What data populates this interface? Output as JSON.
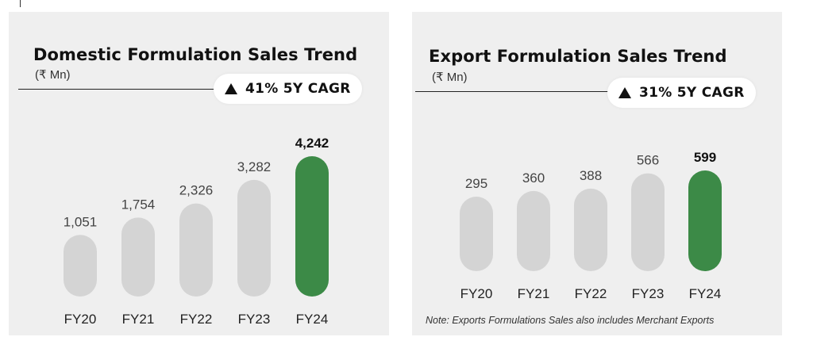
{
  "colors": {
    "bar": "#d4d4d4",
    "highlight": "#3c8a47",
    "panel": "#efefef"
  },
  "domestic": {
    "title": "Domestic Formulation Sales Trend",
    "unit": "(₹ Mn)",
    "cagr": "41% 5Y CAGR",
    "cagr_icon": "triangle-up-icon"
  },
  "export": {
    "title": "Export Formulation Sales Trend",
    "unit": "(₹ Mn)",
    "cagr": "31% 5Y CAGR",
    "cagr_icon": "triangle-up-icon",
    "note": "Note: Exports Formulations Sales also includes Merchant Exports"
  },
  "chart_data": [
    {
      "type": "bar",
      "title": "Domestic Formulation Sales Trend",
      "ylabel": "(₹ Mn)",
      "categories": [
        "FY20",
        "FY21",
        "FY22",
        "FY23",
        "FY24"
      ],
      "values": [
        1051,
        1754,
        2326,
        3282,
        4242
      ],
      "value_labels": [
        "1,051",
        "1,754",
        "2,326",
        "3,282",
        "4,242"
      ],
      "highlight_index": 4,
      "grid": false
    },
    {
      "type": "bar",
      "title": "Export Formulation Sales Trend",
      "ylabel": "(₹ Mn)",
      "categories": [
        "FY20",
        "FY21",
        "FY22",
        "FY23",
        "FY24"
      ],
      "values": [
        295,
        360,
        388,
        566,
        599
      ],
      "value_labels": [
        "295",
        "360",
        "388",
        "566",
        "599"
      ],
      "highlight_index": 4,
      "grid": false
    }
  ]
}
